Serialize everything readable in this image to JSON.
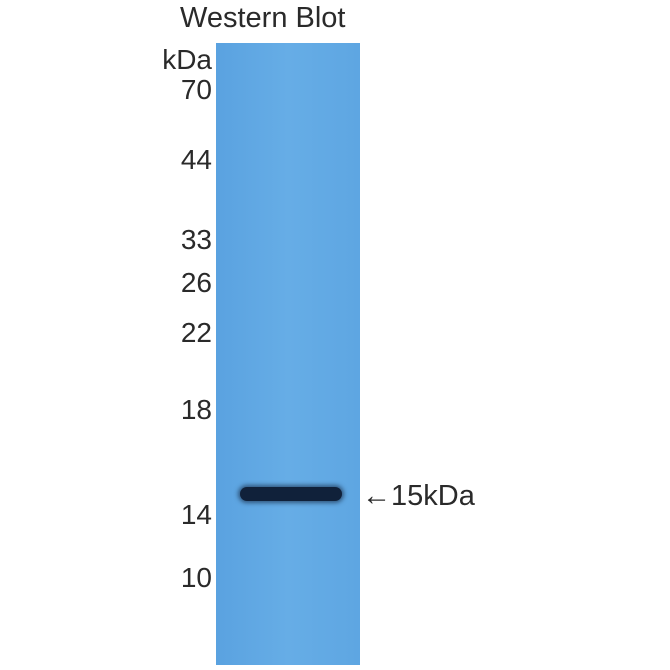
{
  "title": "Western Blot",
  "unit_label": "kDa",
  "markers": [
    "70",
    "44",
    "33",
    "26",
    "22",
    "18",
    "14",
    "10"
  ],
  "band_annotation": "←15kDa",
  "colors": {
    "lane": "#62a8e4",
    "band": "#10213a"
  }
}
